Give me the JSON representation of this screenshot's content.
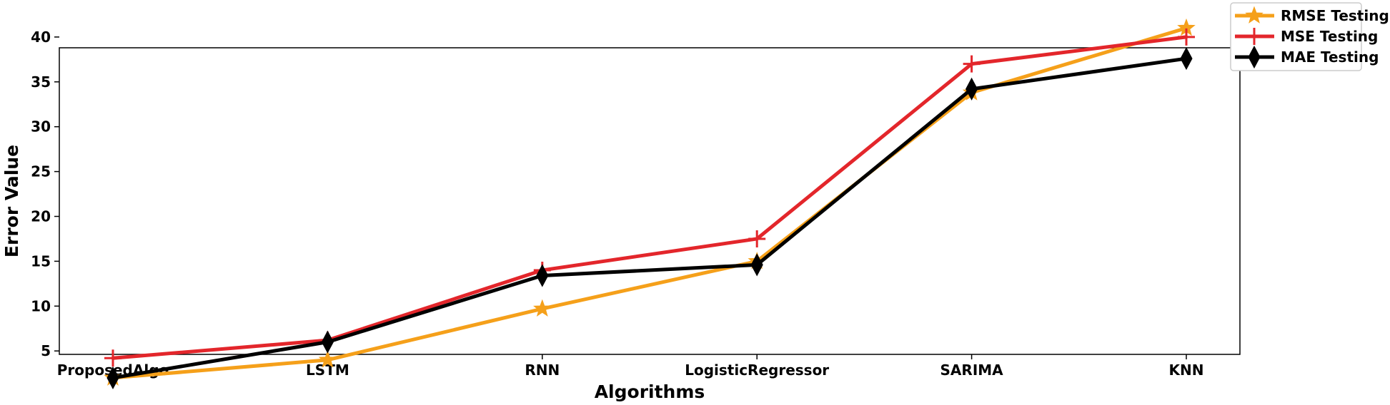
{
  "chart_data": {
    "type": "line",
    "title": "",
    "xlabel": "Algorithms",
    "ylabel": "Error Value",
    "categories": [
      "ProposedAlgo",
      "LSTM",
      "RNN",
      "LogisticRegressor",
      "SARIMA",
      "KNN"
    ],
    "ylim": [
      0,
      43
    ],
    "yticks": [
      5,
      10,
      15,
      20,
      25,
      30,
      35,
      40
    ],
    "grid": false,
    "legend_position": "top-right, outside plot",
    "series": [
      {
        "name": "RMSE Testing",
        "color": "#f5a01a",
        "marker": "star",
        "values": [
          2.0,
          4.0,
          9.7,
          15.0,
          33.8,
          41.0
        ]
      },
      {
        "name": "MSE Testing",
        "color": "#e3262b",
        "marker": "plus",
        "values": [
          4.2,
          6.2,
          14.0,
          17.5,
          37.0,
          40.0
        ]
      },
      {
        "name": "MAE Testing",
        "color": "#000000",
        "marker": "thin-diamond",
        "values": [
          2.0,
          6.0,
          13.4,
          14.6,
          34.2,
          37.6
        ]
      }
    ]
  }
}
